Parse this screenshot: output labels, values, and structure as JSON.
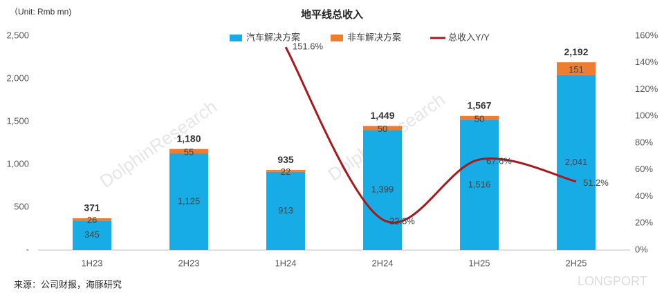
{
  "chart_data": {
    "type": "bar-line",
    "title": "地平线总收入",
    "unit_note": "（Unit: Rmb mn)",
    "source": "来源：公司财报，海豚研究",
    "watermarks": [
      "DolphinResearch",
      "LONGPORT"
    ],
    "categories": [
      "1H23",
      "2H23",
      "1H24",
      "2H24",
      "1H25",
      "2H25"
    ],
    "series": [
      {
        "name": "汽车解决方案",
        "type": "bar",
        "color": "#18ace6",
        "values": [
          345,
          1125,
          913,
          1399,
          1516,
          2041
        ],
        "value_labels": [
          "345",
          "1,125",
          "913",
          "1,399",
          "1,516",
          "2,041"
        ]
      },
      {
        "name": "非车解决方案",
        "type": "bar",
        "color": "#ed7d31",
        "values": [
          26,
          55,
          22,
          50,
          50,
          151
        ],
        "value_labels": [
          "26",
          "55",
          "22",
          "50",
          "50",
          "151"
        ]
      },
      {
        "name": "总收入Y/Y",
        "type": "line",
        "axis": "y2",
        "color": "#a5191c",
        "values": [
          null,
          null,
          151.6,
          22.8,
          67.6,
          51.2
        ],
        "value_labels": [
          null,
          null,
          "151.6%",
          "22.8%",
          "67.6%",
          "51.2%"
        ]
      }
    ],
    "totals": {
      "values": [
        371,
        1180,
        935,
        1449,
        1567,
        2192
      ],
      "value_labels": [
        "371",
        "1,180",
        "935",
        "1,449",
        "1,567",
        "2,192"
      ]
    },
    "ylim": [
      0,
      2500
    ],
    "yticks": [
      {
        "value": 0,
        "label": "-"
      },
      500,
      {
        "value": 1000,
        "label": "1,000"
      },
      {
        "value": 1500,
        "label": "1,500"
      },
      {
        "value": 2000,
        "label": "2,000"
      },
      {
        "value": 2500,
        "label": "2,500"
      }
    ],
    "y2lim": [
      0,
      160
    ],
    "y2ticks": [
      {
        "value": 0,
        "label": "0%"
      },
      {
        "value": 20,
        "label": "20%"
      },
      {
        "value": 40,
        "label": "40%"
      },
      {
        "value": 60,
        "label": "60%"
      },
      {
        "value": 80,
        "label": "80%"
      },
      {
        "value": 100,
        "label": "100%"
      },
      {
        "value": 120,
        "label": "120%"
      },
      {
        "value": 140,
        "label": "140%"
      },
      {
        "value": 160,
        "label": "160%"
      }
    ],
    "grid": false,
    "legend": "top"
  }
}
